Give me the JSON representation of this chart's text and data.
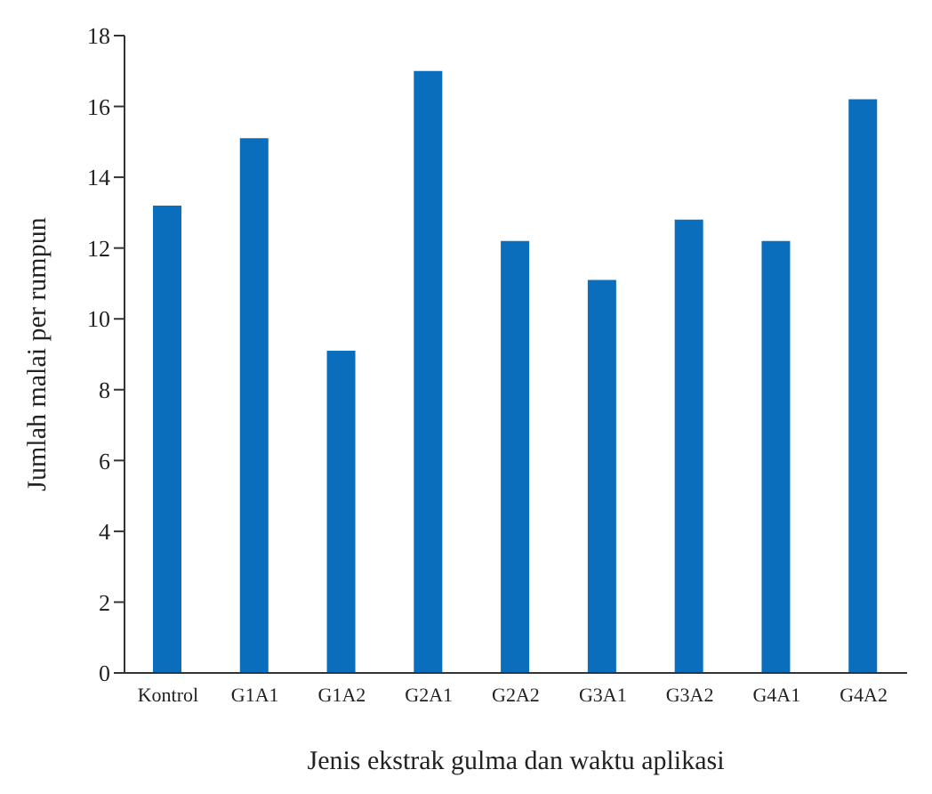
{
  "chart_data": {
    "type": "bar",
    "xlabel": "Jenis ekstrak gulma dan waktu aplikasi",
    "ylabel": "Jumlah malai per rumpun",
    "categories": [
      "Kontrol",
      "G1A1",
      "G1A2",
      "G2A1",
      "G2A2",
      "G3A1",
      "G3A2",
      "G4A1",
      "G4A2"
    ],
    "values": [
      13.2,
      15.1,
      9.1,
      17.0,
      12.2,
      11.1,
      12.8,
      12.2,
      16.2
    ],
    "color": "#0a6ebd",
    "ylim": [
      0,
      18
    ],
    "yticks": [
      0,
      2,
      4,
      6,
      8,
      10,
      12,
      14,
      16,
      18
    ],
    "grid": false,
    "legend": false
  }
}
